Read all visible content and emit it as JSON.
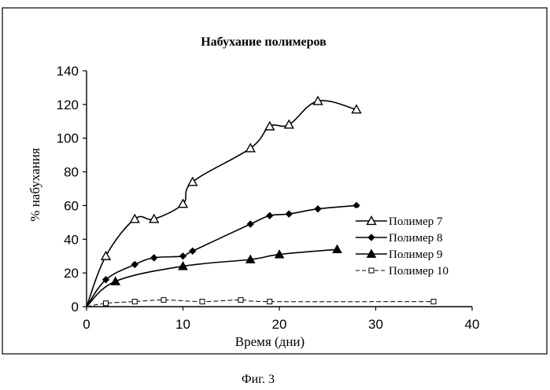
{
  "figure_caption": "Фиг. 3",
  "chart_data": {
    "type": "line",
    "title": "Набухание полимеров",
    "xlabel": "Время (дни)",
    "ylabel": "% набухания",
    "xlim": [
      0,
      40
    ],
    "ylim": [
      0,
      140
    ],
    "xticks": [
      0,
      10,
      20,
      30,
      40
    ],
    "yticks": [
      0,
      20,
      40,
      60,
      80,
      100,
      120,
      140
    ],
    "grid": false,
    "legend_position": "right",
    "series": [
      {
        "name": "Полимер 7",
        "marker": "open-triangle",
        "color": "#000000",
        "x": [
          0,
          2,
          5,
          7,
          10,
          11,
          17,
          19,
          21,
          24,
          28
        ],
        "y": [
          0,
          30,
          52,
          52,
          61,
          74,
          94,
          107,
          108,
          122,
          117
        ]
      },
      {
        "name": "Полимер 8",
        "marker": "diamond",
        "color": "#000000",
        "x": [
          0,
          2,
          5,
          7,
          10,
          11,
          17,
          19,
          21,
          24,
          28
        ],
        "y": [
          0,
          16,
          25,
          29,
          30,
          33,
          49,
          54,
          55,
          58,
          60
        ]
      },
      {
        "name": "Полимер 9",
        "marker": "filled-triangle",
        "color": "#000000",
        "x": [
          0,
          3,
          10,
          17,
          20,
          26
        ],
        "y": [
          0,
          15,
          24,
          28,
          31,
          34
        ]
      },
      {
        "name": "Полимер 10",
        "marker": "open-square",
        "color": "#000000",
        "x": [
          0,
          2,
          5,
          8,
          12,
          16,
          19,
          36
        ],
        "y": [
          0,
          2,
          3,
          4,
          3,
          4,
          3,
          3
        ]
      }
    ]
  }
}
